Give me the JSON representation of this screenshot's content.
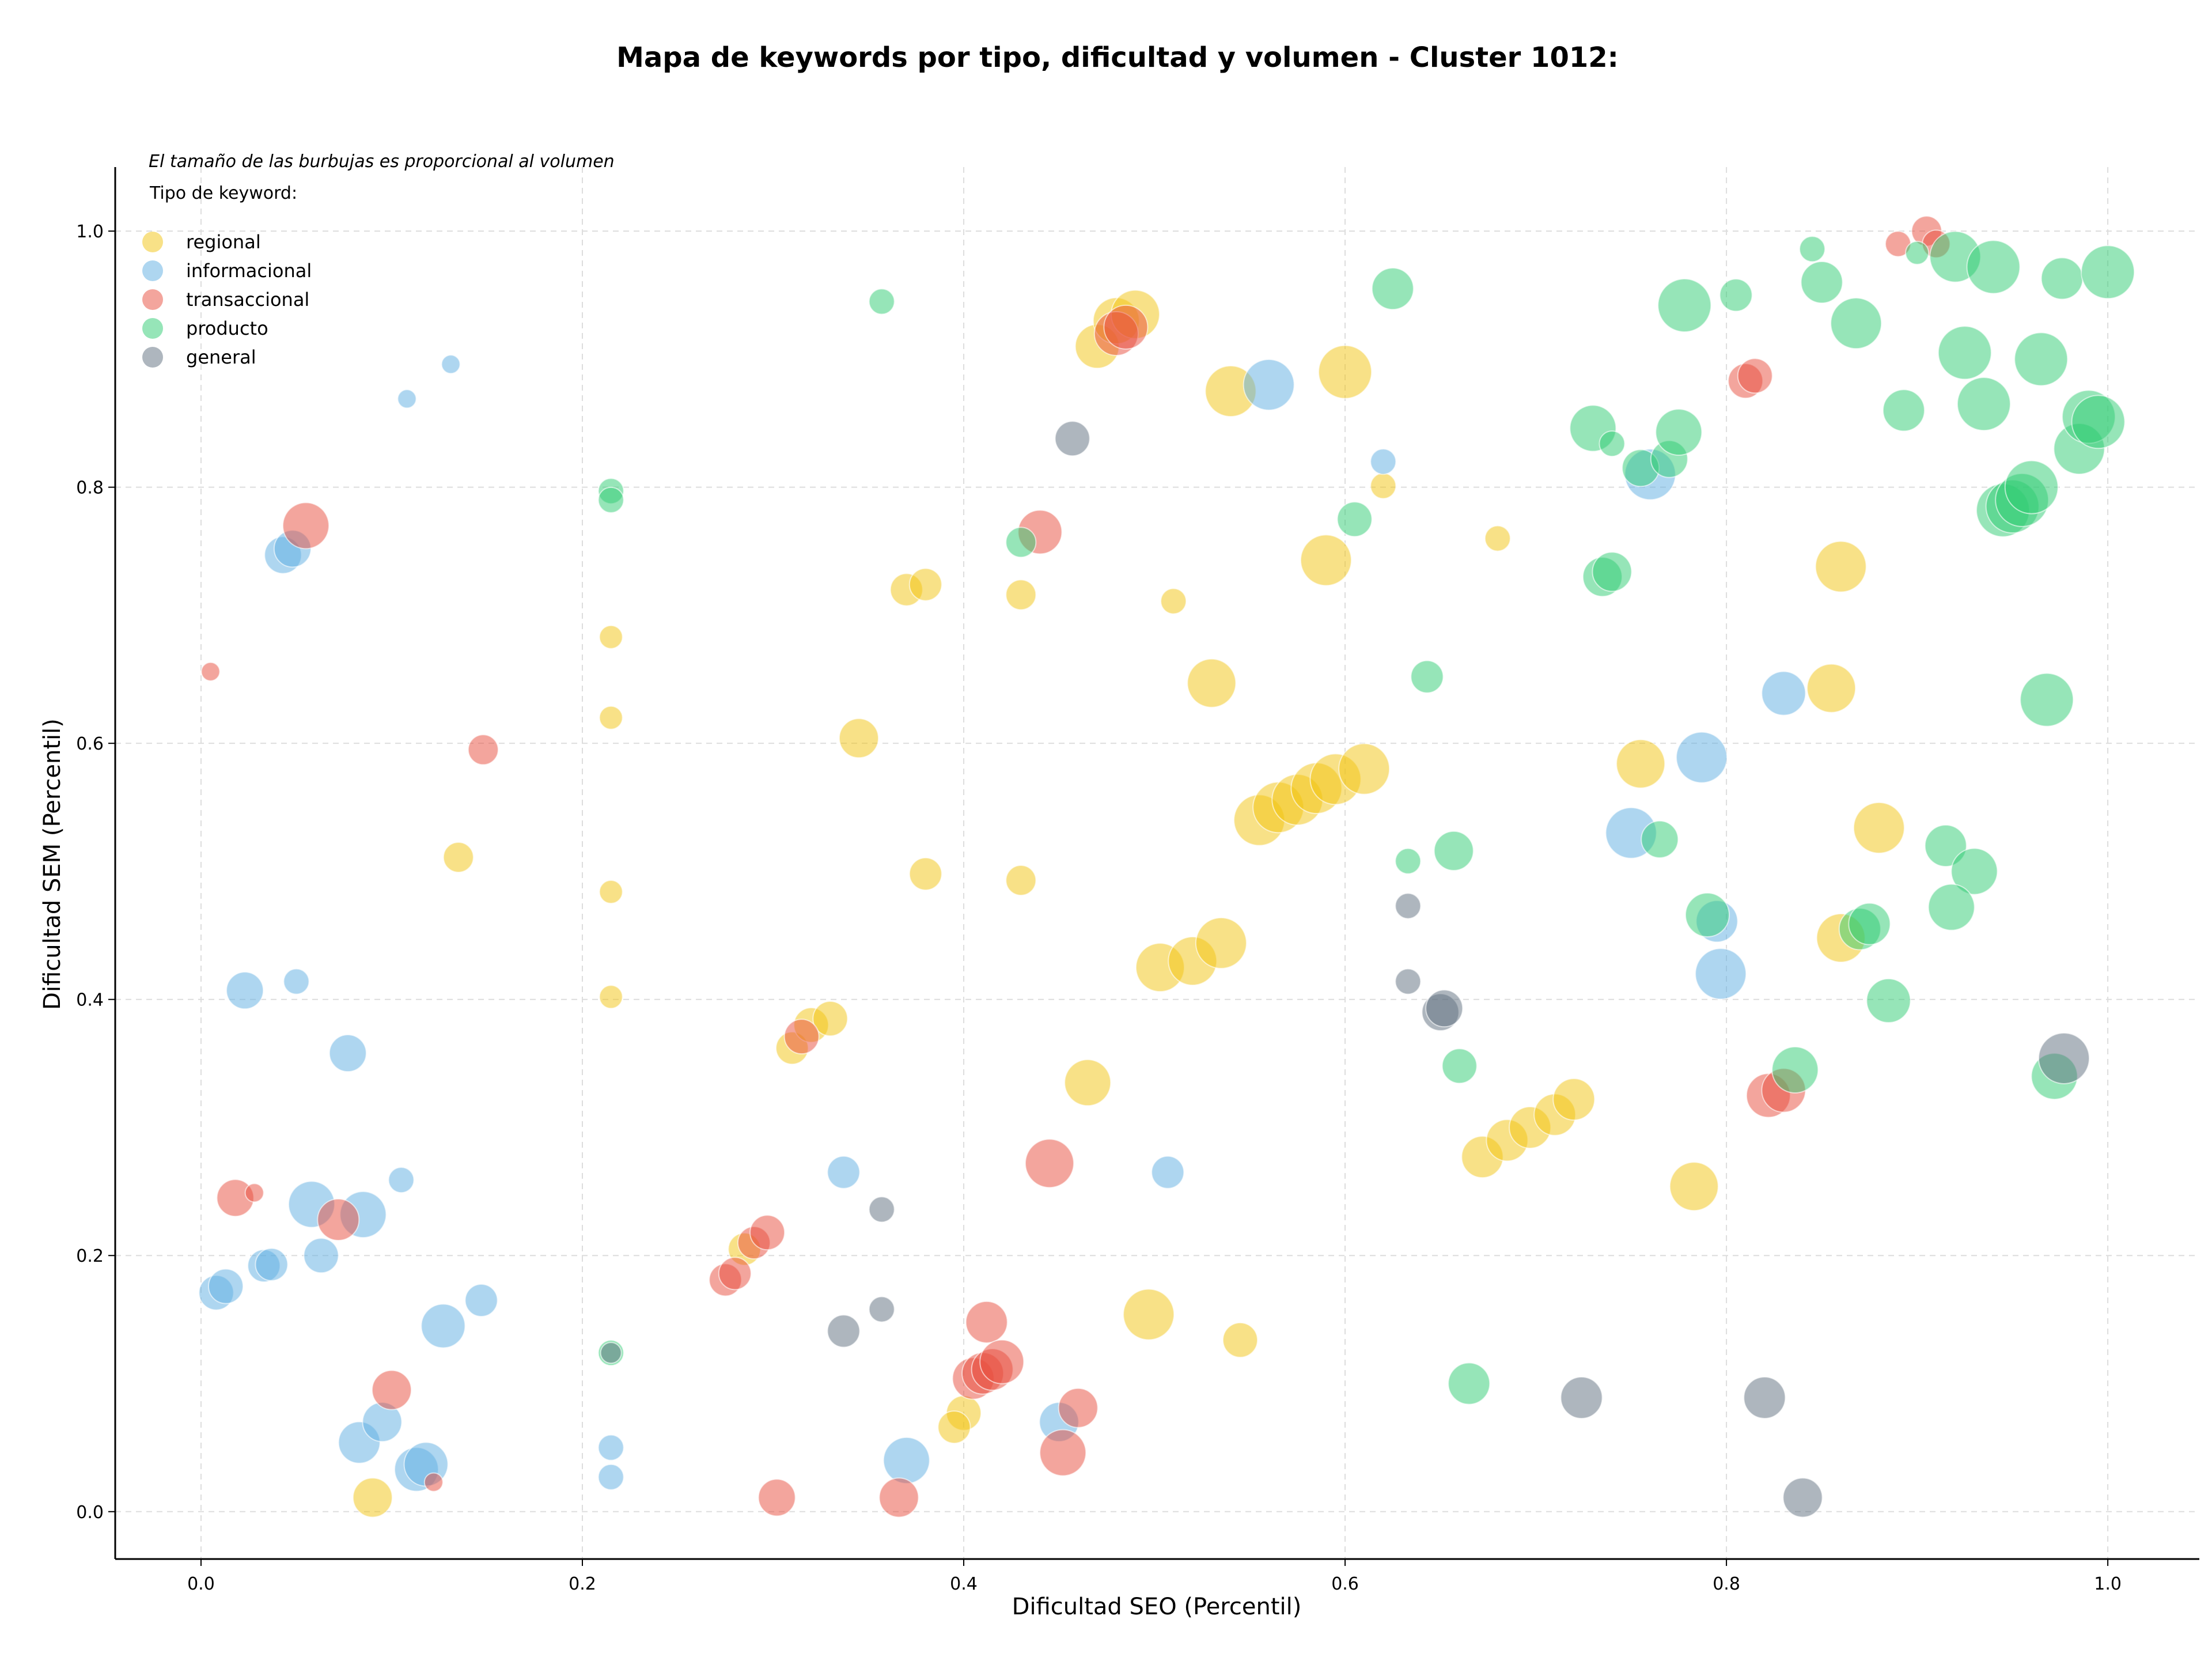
{
  "chart_data": {
    "type": "scatter",
    "title": "Mapa de keywords por tipo, dificultad y volumen - Cluster 1012:",
    "xlabel": "Dificultad SEO (Percentil)",
    "ylabel": "Dificultad SEM (Percentil)",
    "xlim": [
      -0.045,
      1.048
    ],
    "ylim": [
      -0.037,
      1.05
    ],
    "xticks": [
      "0.0",
      "0.2",
      "0.4",
      "0.6",
      "0.8",
      "1.0"
    ],
    "yticks": [
      "0.0",
      "0.2",
      "0.4",
      "0.6",
      "0.8",
      "1.0"
    ],
    "grid": true,
    "note": "El tamaño de las burbujas es proporcional al volumen",
    "legend_title": "Tipo de keyword:",
    "legend_position": "top-left",
    "series": [
      {
        "name": "regional",
        "color": "#f1c40f",
        "points": [
          [
            0.47,
            0.91,
            38
          ],
          [
            0.48,
            0.93,
            40
          ],
          [
            0.49,
            0.935,
            42
          ],
          [
            0.54,
            0.875,
            44
          ],
          [
            0.6,
            0.89,
            46
          ],
          [
            0.59,
            0.743,
            44
          ],
          [
            0.86,
            0.738,
            44
          ],
          [
            0.855,
            0.643,
            42
          ],
          [
            0.53,
            0.647,
            42
          ],
          [
            0.37,
            0.72,
            28
          ],
          [
            0.38,
            0.724,
            28
          ],
          [
            0.43,
            0.716,
            26
          ],
          [
            0.51,
            0.711,
            22
          ],
          [
            0.62,
            0.801,
            22
          ],
          [
            0.68,
            0.76,
            22
          ],
          [
            0.215,
            0.683,
            20
          ],
          [
            0.215,
            0.62,
            20
          ],
          [
            0.345,
            0.604,
            34
          ],
          [
            0.135,
            0.511,
            26
          ],
          [
            0.38,
            0.498,
            28
          ],
          [
            0.43,
            0.493,
            26
          ],
          [
            0.215,
            0.484,
            20
          ],
          [
            0.215,
            0.402,
            20
          ],
          [
            0.31,
            0.362,
            28
          ],
          [
            0.32,
            0.38,
            30
          ],
          [
            0.33,
            0.385,
            30
          ],
          [
            0.465,
            0.335,
            40
          ],
          [
            0.755,
            0.584,
            42
          ],
          [
            0.88,
            0.534,
            44
          ],
          [
            0.86,
            0.448,
            42
          ],
          [
            0.503,
            0.425,
            42
          ],
          [
            0.52,
            0.43,
            42
          ],
          [
            0.535,
            0.444,
            44
          ],
          [
            0.555,
            0.54,
            44
          ],
          [
            0.565,
            0.55,
            44
          ],
          [
            0.575,
            0.556,
            44
          ],
          [
            0.585,
            0.565,
            44
          ],
          [
            0.595,
            0.572,
            44
          ],
          [
            0.61,
            0.58,
            44
          ],
          [
            0.672,
            0.277,
            36
          ],
          [
            0.685,
            0.29,
            36
          ],
          [
            0.697,
            0.3,
            36
          ],
          [
            0.71,
            0.31,
            36
          ],
          [
            0.72,
            0.322,
            36
          ],
          [
            0.783,
            0.254,
            42
          ],
          [
            0.497,
            0.154,
            44
          ],
          [
            0.545,
            0.134,
            30
          ],
          [
            0.09,
            0.011,
            34
          ],
          [
            0.4,
            0.077,
            30
          ],
          [
            0.395,
            0.066,
            28
          ],
          [
            0.285,
            0.205,
            28
          ]
        ]
      },
      {
        "name": "informacional",
        "color": "#5dade2",
        "points": [
          [
            0.108,
            0.869,
            16
          ],
          [
            0.131,
            0.896,
            16
          ],
          [
            0.043,
            0.747,
            32
          ],
          [
            0.048,
            0.752,
            32
          ],
          [
            0.023,
            0.407,
            32
          ],
          [
            0.05,
            0.414,
            22
          ],
          [
            0.077,
            0.358,
            32
          ],
          [
            0.105,
            0.259,
            22
          ],
          [
            0.058,
            0.24,
            40
          ],
          [
            0.085,
            0.232,
            40
          ],
          [
            0.063,
            0.2,
            30
          ],
          [
            0.033,
            0.192,
            28
          ],
          [
            0.037,
            0.193,
            28
          ],
          [
            0.008,
            0.171,
            30
          ],
          [
            0.013,
            0.176,
            30
          ],
          [
            0.147,
            0.165,
            28
          ],
          [
            0.127,
            0.145,
            38
          ],
          [
            0.083,
            0.054,
            36
          ],
          [
            0.095,
            0.07,
            34
          ],
          [
            0.113,
            0.033,
            38
          ],
          [
            0.118,
            0.037,
            38
          ],
          [
            0.215,
            0.05,
            22
          ],
          [
            0.215,
            0.027,
            22
          ],
          [
            0.337,
            0.265,
            28
          ],
          [
            0.507,
            0.265,
            28
          ],
          [
            0.37,
            0.04,
            40
          ],
          [
            0.45,
            0.07,
            34
          ],
          [
            0.56,
            0.88,
            44
          ],
          [
            0.62,
            0.82,
            22
          ],
          [
            0.76,
            0.81,
            44
          ],
          [
            0.75,
            0.53,
            44
          ],
          [
            0.787,
            0.589,
            44
          ],
          [
            0.795,
            0.461,
            36
          ],
          [
            0.797,
            0.42,
            44
          ],
          [
            0.83,
            0.639,
            38
          ]
        ]
      },
      {
        "name": "transaccional",
        "color": "#e74c3c",
        "points": [
          [
            0.005,
            0.656,
            16
          ],
          [
            0.055,
            0.77,
            40
          ],
          [
            0.148,
            0.595,
            26
          ],
          [
            0.018,
            0.245,
            32
          ],
          [
            0.028,
            0.249,
            16
          ],
          [
            0.072,
            0.228,
            36
          ],
          [
            0.1,
            0.095,
            34
          ],
          [
            0.122,
            0.023,
            16
          ],
          [
            0.275,
            0.181,
            28
          ],
          [
            0.28,
            0.186,
            28
          ],
          [
            0.29,
            0.21,
            28
          ],
          [
            0.297,
            0.218,
            30
          ],
          [
            0.315,
            0.371,
            30
          ],
          [
            0.302,
            0.011,
            32
          ],
          [
            0.366,
            0.011,
            34
          ],
          [
            0.44,
            0.765,
            38
          ],
          [
            0.445,
            0.272,
            42
          ],
          [
            0.412,
            0.148,
            36
          ],
          [
            0.405,
            0.104,
            36
          ],
          [
            0.41,
            0.108,
            36
          ],
          [
            0.415,
            0.111,
            36
          ],
          [
            0.42,
            0.117,
            38
          ],
          [
            0.46,
            0.081,
            34
          ],
          [
            0.452,
            0.046,
            40
          ],
          [
            0.48,
            0.92,
            38
          ],
          [
            0.485,
            0.925,
            38
          ],
          [
            0.81,
            0.883,
            30
          ],
          [
            0.815,
            0.887,
            30
          ],
          [
            0.822,
            0.325,
            38
          ],
          [
            0.83,
            0.329,
            38
          ],
          [
            0.89,
            0.99,
            22
          ],
          [
            0.905,
            1.0,
            26
          ],
          [
            0.91,
            0.99,
            24
          ]
        ]
      },
      {
        "name": "producto",
        "color": "#2ecc71",
        "points": [
          [
            0.357,
            0.945,
            22
          ],
          [
            0.215,
            0.797,
            22
          ],
          [
            0.215,
            0.79,
            22
          ],
          [
            0.215,
            0.124,
            22
          ],
          [
            0.43,
            0.757,
            26
          ],
          [
            0.625,
            0.955,
            36
          ],
          [
            0.605,
            0.775,
            30
          ],
          [
            0.643,
            0.652,
            28
          ],
          [
            0.633,
            0.508,
            22
          ],
          [
            0.657,
            0.516,
            34
          ],
          [
            0.66,
            0.348,
            30
          ],
          [
            0.665,
            0.1,
            36
          ],
          [
            0.73,
            0.846,
            40
          ],
          [
            0.74,
            0.834,
            22
          ],
          [
            0.735,
            0.73,
            34
          ],
          [
            0.74,
            0.734,
            34
          ],
          [
            0.755,
            0.815,
            32
          ],
          [
            0.77,
            0.822,
            32
          ],
          [
            0.775,
            0.843,
            40
          ],
          [
            0.778,
            0.942,
            46
          ],
          [
            0.805,
            0.95,
            28
          ],
          [
            0.765,
            0.525,
            32
          ],
          [
            0.79,
            0.466,
            38
          ],
          [
            0.845,
            0.986,
            22
          ],
          [
            0.85,
            0.96,
            36
          ],
          [
            0.868,
            0.928,
            44
          ],
          [
            0.87,
            0.455,
            36
          ],
          [
            0.875,
            0.459,
            36
          ],
          [
            0.885,
            0.399,
            38
          ],
          [
            0.893,
            0.86,
            36
          ],
          [
            0.9,
            0.983,
            20
          ],
          [
            0.915,
            0.52,
            36
          ],
          [
            0.92,
            0.98,
            44
          ],
          [
            0.925,
            0.905,
            46
          ],
          [
            0.93,
            0.5,
            40
          ],
          [
            0.935,
            0.865,
            46
          ],
          [
            0.94,
            0.972,
            46
          ],
          [
            0.918,
            0.472,
            40
          ],
          [
            0.945,
            0.782,
            46
          ],
          [
            0.95,
            0.785,
            46
          ],
          [
            0.955,
            0.79,
            46
          ],
          [
            0.96,
            0.8,
            46
          ],
          [
            0.965,
            0.9,
            46
          ],
          [
            0.968,
            0.634,
            46
          ],
          [
            0.972,
            0.34,
            40
          ],
          [
            0.976,
            0.963,
            36
          ],
          [
            0.985,
            0.83,
            44
          ],
          [
            0.99,
            0.855,
            46
          ],
          [
            0.995,
            0.851,
            46
          ],
          [
            1.0,
            0.968,
            46
          ],
          [
            0.836,
            0.345,
            40
          ]
        ]
      },
      {
        "name": "general",
        "color": "#5d6d7e",
        "points": [
          [
            0.457,
            0.838,
            30
          ],
          [
            0.357,
            0.236,
            22
          ],
          [
            0.337,
            0.141,
            28
          ],
          [
            0.357,
            0.158,
            22
          ],
          [
            0.215,
            0.124,
            18
          ],
          [
            0.633,
            0.473,
            22
          ],
          [
            0.633,
            0.414,
            22
          ],
          [
            0.65,
            0.39,
            32
          ],
          [
            0.652,
            0.393,
            32
          ],
          [
            0.724,
            0.089,
            36
          ],
          [
            0.82,
            0.089,
            36
          ],
          [
            0.84,
            0.011,
            34
          ],
          [
            0.977,
            0.354,
            44
          ]
        ]
      }
    ]
  }
}
